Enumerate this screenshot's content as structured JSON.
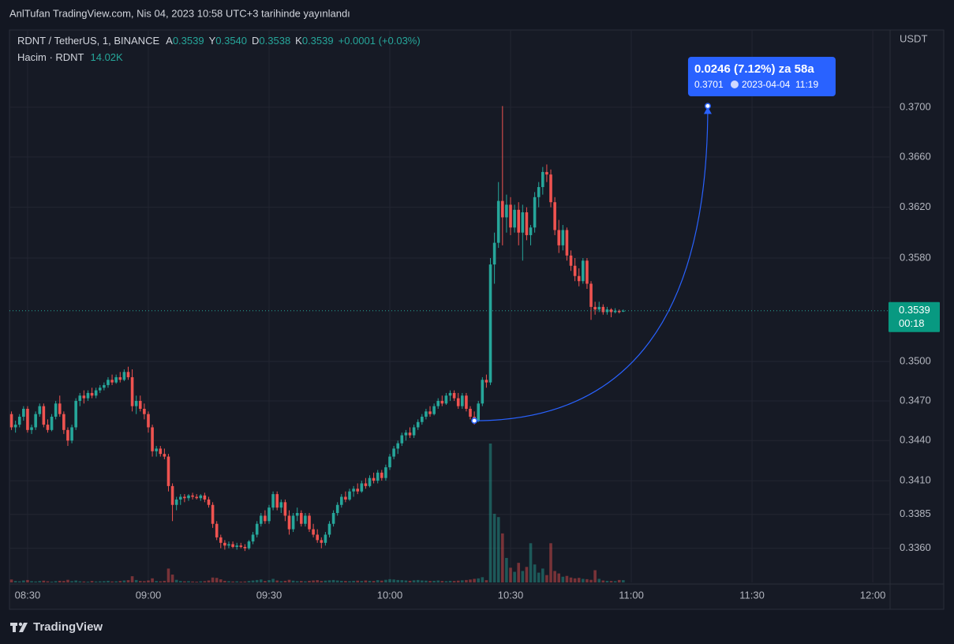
{
  "header": {
    "title": "AnlTufan TradingView.com, Nis 04, 2023 10:58 UTC+3 tarihinde yayınlandı",
    "brand": "TradingView"
  },
  "chart_data": {
    "type": "candlestick",
    "symbol": "RDNT / TetherUS, 1, BINANCE",
    "legend": {
      "o_label": "A",
      "o": "0.3539",
      "h_label": "Y",
      "h": "0.3540",
      "l_label": "D",
      "l": "0.3538",
      "c_label": "K",
      "c": "0.3539",
      "change": "+0.0001 (+0.03%)",
      "volume_label": "Hacim · RDNT",
      "volume": "14.02K"
    },
    "y_unit": "USDT",
    "log_scale": true,
    "grid": true,
    "up_color": "#26a69a",
    "down_color": "#ef5350",
    "last_price_countdown": "00:18",
    "ylim": [
      0.3335,
      0.3763
    ],
    "yticks": [
      {
        "value": 0.336,
        "label": "0.3360"
      },
      {
        "value": 0.3385,
        "label": "0.3385"
      },
      {
        "value": 0.341,
        "label": "0.3410"
      },
      {
        "value": 0.344,
        "label": "0.3440"
      },
      {
        "value": 0.347,
        "label": "0.3470"
      },
      {
        "value": 0.35,
        "label": "0.3500"
      },
      {
        "value": 0.358,
        "label": "0.3580"
      },
      {
        "value": 0.362,
        "label": "0.3620"
      },
      {
        "value": 0.366,
        "label": "0.3660"
      },
      {
        "value": 0.37,
        "label": "0.3700"
      }
    ],
    "xlim": [
      505.5,
      724.3
    ],
    "xticks": [
      {
        "value": 510,
        "label": "08:30"
      },
      {
        "value": 540,
        "label": "09:00"
      },
      {
        "value": 570,
        "label": "09:30"
      },
      {
        "value": 600,
        "label": "10:00"
      },
      {
        "value": 630,
        "label": "10:30"
      },
      {
        "value": 660,
        "label": "11:00"
      },
      {
        "value": 690,
        "label": "11:30"
      },
      {
        "value": 720,
        "label": "12:00"
      }
    ],
    "x": [
      506,
      507,
      508,
      509,
      510,
      511,
      512,
      513,
      514,
      515,
      516,
      517,
      518,
      519,
      520,
      521,
      522,
      523,
      524,
      525,
      526,
      527,
      528,
      529,
      530,
      531,
      532,
      533,
      534,
      535,
      536,
      537,
      538,
      539,
      540,
      541,
      542,
      543,
      544,
      545,
      546,
      547,
      548,
      549,
      550,
      551,
      552,
      553,
      554,
      555,
      556,
      557,
      558,
      559,
      560,
      561,
      562,
      563,
      564,
      565,
      566,
      567,
      568,
      569,
      570,
      571,
      572,
      573,
      574,
      575,
      576,
      577,
      578,
      579,
      580,
      581,
      582,
      583,
      584,
      585,
      586,
      587,
      588,
      589,
      590,
      591,
      592,
      593,
      594,
      595,
      596,
      597,
      598,
      599,
      600,
      601,
      602,
      603,
      604,
      605,
      606,
      607,
      608,
      609,
      610,
      611,
      612,
      613,
      614,
      615,
      616,
      617,
      618,
      619,
      620,
      621,
      622,
      623,
      624,
      625,
      626,
      627,
      628,
      629,
      630,
      631,
      632,
      633,
      634,
      635,
      636,
      637,
      638,
      639,
      640,
      641,
      642,
      643,
      644,
      645,
      646,
      647,
      648,
      649,
      650,
      651,
      652,
      653,
      654,
      655,
      656,
      657,
      658
    ],
    "candles": [
      [
        0.346,
        0.3462,
        0.3448,
        0.345
      ],
      [
        0.345,
        0.3455,
        0.3446,
        0.3452
      ],
      [
        0.3452,
        0.346,
        0.345,
        0.3458
      ],
      [
        0.3458,
        0.3466,
        0.3455,
        0.3464
      ],
      [
        0.3464,
        0.3466,
        0.3446,
        0.3448
      ],
      [
        0.3448,
        0.3452,
        0.3445,
        0.345
      ],
      [
        0.345,
        0.3462,
        0.3448,
        0.346
      ],
      [
        0.346,
        0.3468,
        0.3458,
        0.3466
      ],
      [
        0.3466,
        0.3468,
        0.345,
        0.3452
      ],
      [
        0.3452,
        0.3456,
        0.3446,
        0.3448
      ],
      [
        0.3448,
        0.346,
        0.3447,
        0.3458
      ],
      [
        0.3458,
        0.347,
        0.3456,
        0.3468
      ],
      [
        0.3468,
        0.3474,
        0.3458,
        0.346
      ],
      [
        0.346,
        0.3462,
        0.3445,
        0.3448
      ],
      [
        0.3448,
        0.345,
        0.3436,
        0.344
      ],
      [
        0.344,
        0.3452,
        0.3438,
        0.345
      ],
      [
        0.345,
        0.3472,
        0.3448,
        0.347
      ],
      [
        0.347,
        0.3476,
        0.3466,
        0.3474
      ],
      [
        0.3474,
        0.3478,
        0.3468,
        0.3472
      ],
      [
        0.3472,
        0.3478,
        0.347,
        0.3476
      ],
      [
        0.3476,
        0.348,
        0.3472,
        0.3474
      ],
      [
        0.3474,
        0.348,
        0.3472,
        0.3478
      ],
      [
        0.3478,
        0.3482,
        0.3476,
        0.348
      ],
      [
        0.348,
        0.3484,
        0.3478,
        0.3482
      ],
      [
        0.3482,
        0.3488,
        0.348,
        0.3486
      ],
      [
        0.3486,
        0.349,
        0.3482,
        0.3484
      ],
      [
        0.3484,
        0.349,
        0.3483,
        0.3488
      ],
      [
        0.3488,
        0.3492,
        0.3484,
        0.3486
      ],
      [
        0.3486,
        0.3494,
        0.3485,
        0.3492
      ],
      [
        0.3492,
        0.3496,
        0.3486,
        0.3488
      ],
      [
        0.3488,
        0.3494,
        0.3462,
        0.3466
      ],
      [
        0.3466,
        0.3474,
        0.346,
        0.347
      ],
      [
        0.347,
        0.3474,
        0.3462,
        0.3464
      ],
      [
        0.3464,
        0.3468,
        0.3456,
        0.346
      ],
      [
        0.346,
        0.3462,
        0.3446,
        0.345
      ],
      [
        0.345,
        0.3452,
        0.3428,
        0.3432
      ],
      [
        0.3432,
        0.3436,
        0.3428,
        0.3434
      ],
      [
        0.3434,
        0.3436,
        0.3428,
        0.343
      ],
      [
        0.343,
        0.3434,
        0.3426,
        0.3428
      ],
      [
        0.3428,
        0.343,
        0.3402,
        0.3406
      ],
      [
        0.3406,
        0.3408,
        0.338,
        0.3392
      ],
      [
        0.3392,
        0.3398,
        0.3388,
        0.3396
      ],
      [
        0.3396,
        0.34,
        0.3392,
        0.3398
      ],
      [
        0.3398,
        0.34,
        0.3394,
        0.3397
      ],
      [
        0.3397,
        0.34,
        0.3395,
        0.3399
      ],
      [
        0.3399,
        0.3401,
        0.3396,
        0.3398
      ],
      [
        0.3398,
        0.34,
        0.3396,
        0.3397
      ],
      [
        0.3397,
        0.34,
        0.3395,
        0.3399
      ],
      [
        0.3399,
        0.3401,
        0.3394,
        0.3396
      ],
      [
        0.3396,
        0.3398,
        0.339,
        0.3392
      ],
      [
        0.3392,
        0.3394,
        0.3375,
        0.3378
      ],
      [
        0.3378,
        0.338,
        0.3366,
        0.3368
      ],
      [
        0.3368,
        0.337,
        0.336,
        0.3364
      ],
      [
        0.3364,
        0.3366,
        0.3359,
        0.3362
      ],
      [
        0.3362,
        0.3365,
        0.336,
        0.3363
      ],
      [
        0.3363,
        0.3365,
        0.336,
        0.3361
      ],
      [
        0.3361,
        0.3364,
        0.3359,
        0.3362
      ],
      [
        0.3362,
        0.3364,
        0.336,
        0.3361
      ],
      [
        0.3361,
        0.3363,
        0.3358,
        0.336
      ],
      [
        0.336,
        0.3366,
        0.3359,
        0.3365
      ],
      [
        0.3365,
        0.3372,
        0.3363,
        0.337
      ],
      [
        0.337,
        0.338,
        0.3368,
        0.3378
      ],
      [
        0.3378,
        0.3386,
        0.3376,
        0.3384
      ],
      [
        0.3384,
        0.3388,
        0.3378,
        0.338
      ],
      [
        0.338,
        0.3392,
        0.3378,
        0.339
      ],
      [
        0.339,
        0.3402,
        0.3388,
        0.34
      ],
      [
        0.34,
        0.3402,
        0.3388,
        0.339
      ],
      [
        0.339,
        0.3396,
        0.3386,
        0.3394
      ],
      [
        0.3394,
        0.3396,
        0.338,
        0.3384
      ],
      [
        0.3384,
        0.3388,
        0.337,
        0.3374
      ],
      [
        0.3374,
        0.3386,
        0.3372,
        0.3384
      ],
      [
        0.3384,
        0.339,
        0.338,
        0.3386
      ],
      [
        0.3386,
        0.3388,
        0.3376,
        0.3378
      ],
      [
        0.3378,
        0.3386,
        0.3376,
        0.3384
      ],
      [
        0.3384,
        0.3386,
        0.3372,
        0.3374
      ],
      [
        0.3374,
        0.3378,
        0.3368,
        0.337
      ],
      [
        0.337,
        0.3374,
        0.3364,
        0.3366
      ],
      [
        0.3366,
        0.3368,
        0.336,
        0.3364
      ],
      [
        0.3364,
        0.3372,
        0.3362,
        0.337
      ],
      [
        0.337,
        0.338,
        0.3368,
        0.3378
      ],
      [
        0.3378,
        0.3388,
        0.3376,
        0.3386
      ],
      [
        0.3386,
        0.3394,
        0.3384,
        0.3392
      ],
      [
        0.3392,
        0.34,
        0.339,
        0.3398
      ],
      [
        0.3398,
        0.3402,
        0.3394,
        0.3396
      ],
      [
        0.3396,
        0.3404,
        0.3395,
        0.3402
      ],
      [
        0.3402,
        0.3406,
        0.3398,
        0.3404
      ],
      [
        0.3404,
        0.3408,
        0.34,
        0.3402
      ],
      [
        0.3402,
        0.341,
        0.3401,
        0.3408
      ],
      [
        0.3408,
        0.3412,
        0.3404,
        0.3406
      ],
      [
        0.3406,
        0.3414,
        0.3405,
        0.3412
      ],
      [
        0.3412,
        0.3416,
        0.3408,
        0.341
      ],
      [
        0.341,
        0.3418,
        0.3408,
        0.3416
      ],
      [
        0.3416,
        0.3418,
        0.341,
        0.3412
      ],
      [
        0.3412,
        0.3422,
        0.341,
        0.342
      ],
      [
        0.342,
        0.343,
        0.3418,
        0.3428
      ],
      [
        0.3428,
        0.3436,
        0.3426,
        0.3434
      ],
      [
        0.3434,
        0.344,
        0.343,
        0.3438
      ],
      [
        0.3438,
        0.3446,
        0.3436,
        0.3444
      ],
      [
        0.3444,
        0.3448,
        0.344,
        0.3446
      ],
      [
        0.3446,
        0.345,
        0.3442,
        0.3444
      ],
      [
        0.3444,
        0.3452,
        0.3442,
        0.345
      ],
      [
        0.345,
        0.3456,
        0.3448,
        0.3454
      ],
      [
        0.3454,
        0.346,
        0.3452,
        0.3458
      ],
      [
        0.3458,
        0.3464,
        0.3456,
        0.3462
      ],
      [
        0.3462,
        0.3466,
        0.3458,
        0.346
      ],
      [
        0.346,
        0.3468,
        0.3459,
        0.3466
      ],
      [
        0.3466,
        0.3472,
        0.3464,
        0.347
      ],
      [
        0.347,
        0.3474,
        0.3466,
        0.3468
      ],
      [
        0.3468,
        0.3476,
        0.3467,
        0.3474
      ],
      [
        0.3474,
        0.3478,
        0.347,
        0.3476
      ],
      [
        0.3476,
        0.3478,
        0.347,
        0.3472
      ],
      [
        0.3472,
        0.3476,
        0.3464,
        0.3466
      ],
      [
        0.3466,
        0.3476,
        0.3464,
        0.3474
      ],
      [
        0.3474,
        0.3476,
        0.3462,
        0.3464
      ],
      [
        0.3464,
        0.3466,
        0.3456,
        0.3458
      ],
      [
        0.3458,
        0.3462,
        0.3452,
        0.3455
      ],
      [
        0.3455,
        0.347,
        0.3454,
        0.3468
      ],
      [
        0.3468,
        0.3488,
        0.3466,
        0.3486
      ],
      [
        0.3486,
        0.349,
        0.348,
        0.3484
      ],
      [
        0.3484,
        0.358,
        0.3482,
        0.3575
      ],
      [
        0.3575,
        0.36,
        0.356,
        0.3592
      ],
      [
        0.3592,
        0.364,
        0.3588,
        0.3625
      ],
      [
        0.3625,
        0.3701,
        0.359,
        0.3612
      ],
      [
        0.3612,
        0.363,
        0.36,
        0.3622
      ],
      [
        0.3622,
        0.3628,
        0.3598,
        0.3604
      ],
      [
        0.3604,
        0.3622,
        0.36,
        0.3618
      ],
      [
        0.3618,
        0.3624,
        0.359,
        0.36
      ],
      [
        0.36,
        0.3622,
        0.3578,
        0.3616
      ],
      [
        0.3616,
        0.362,
        0.3594,
        0.3598
      ],
      [
        0.3598,
        0.3606,
        0.359,
        0.3604
      ],
      [
        0.3604,
        0.3632,
        0.36,
        0.3628
      ],
      [
        0.3628,
        0.364,
        0.362,
        0.3636
      ],
      [
        0.3636,
        0.3652,
        0.363,
        0.3648
      ],
      [
        0.3648,
        0.3654,
        0.364,
        0.3646
      ],
      [
        0.3646,
        0.365,
        0.362,
        0.3624
      ],
      [
        0.3624,
        0.3628,
        0.3598,
        0.3602
      ],
      [
        0.3602,
        0.361,
        0.3584,
        0.359
      ],
      [
        0.359,
        0.3606,
        0.3586,
        0.3602
      ],
      [
        0.3602,
        0.3604,
        0.3578,
        0.3582
      ],
      [
        0.3582,
        0.3586,
        0.357,
        0.3574
      ],
      [
        0.3574,
        0.358,
        0.3562,
        0.3566
      ],
      [
        0.3566,
        0.3572,
        0.3558,
        0.3562
      ],
      [
        0.3562,
        0.358,
        0.356,
        0.3578
      ],
      [
        0.3578,
        0.358,
        0.3556,
        0.356
      ],
      [
        0.356,
        0.3562,
        0.3532,
        0.3542
      ],
      [
        0.3542,
        0.3546,
        0.3536,
        0.354
      ],
      [
        0.354,
        0.3546,
        0.3538,
        0.3542
      ],
      [
        0.3542,
        0.3544,
        0.3536,
        0.3538
      ],
      [
        0.3538,
        0.3542,
        0.3536,
        0.354
      ],
      [
        0.354,
        0.3541,
        0.3534,
        0.3538
      ],
      [
        0.3538,
        0.3541,
        0.3537,
        0.3539
      ],
      [
        0.3539,
        0.354,
        0.3537,
        0.3538
      ],
      [
        0.3539,
        0.354,
        0.3538,
        0.3539
      ]
    ],
    "volumes": [
      18000,
      9000,
      7000,
      12000,
      15000,
      8000,
      6000,
      9000,
      11000,
      7000,
      5000,
      8000,
      10000,
      9000,
      16000,
      8000,
      12000,
      7000,
      6000,
      5000,
      9000,
      6000,
      7000,
      8000,
      10000,
      6000,
      7000,
      9000,
      12000,
      14000,
      38000,
      15000,
      9000,
      8000,
      12000,
      25000,
      9000,
      7000,
      10000,
      85000,
      48000,
      16000,
      9000,
      7000,
      8000,
      6000,
      5000,
      7000,
      8000,
      12000,
      30000,
      28000,
      19000,
      10000,
      8000,
      6000,
      7000,
      5000,
      6000,
      9000,
      12000,
      15000,
      18000,
      9000,
      14000,
      22000,
      12000,
      8000,
      10000,
      16000,
      11000,
      8000,
      9000,
      7000,
      10000,
      12000,
      14000,
      9000,
      11000,
      13000,
      15000,
      12000,
      10000,
      9000,
      8000,
      10000,
      11000,
      9000,
      12000,
      10000,
      9000,
      14000,
      11000,
      16000,
      20000,
      18000,
      15000,
      14000,
      12000,
      10000,
      13000,
      15000,
      12000,
      11000,
      9000,
      10000,
      12000,
      9000,
      8000,
      10000,
      9000,
      11000,
      13000,
      15000,
      18000,
      22000,
      25000,
      32000,
      14000,
      850000,
      420000,
      400000,
      300000,
      150000,
      90000,
      65000,
      120000,
      70000,
      95000,
      240000,
      110000,
      60000,
      85000,
      45000,
      240000,
      70000,
      55000,
      35000,
      40000,
      30000,
      25000,
      28000,
      22000,
      20000,
      16000,
      75000,
      22000,
      12000,
      10000,
      9000,
      8000,
      15000,
      14020
    ],
    "measure": {
      "label": "0.0246 (7.12%) za 58a",
      "price_label": "0.3701",
      "time_label": "2023-04-04  11:19",
      "from": [
        621,
        0.3455
      ],
      "to": [
        679,
        0.3701
      ],
      "color": "#2962ff"
    }
  }
}
